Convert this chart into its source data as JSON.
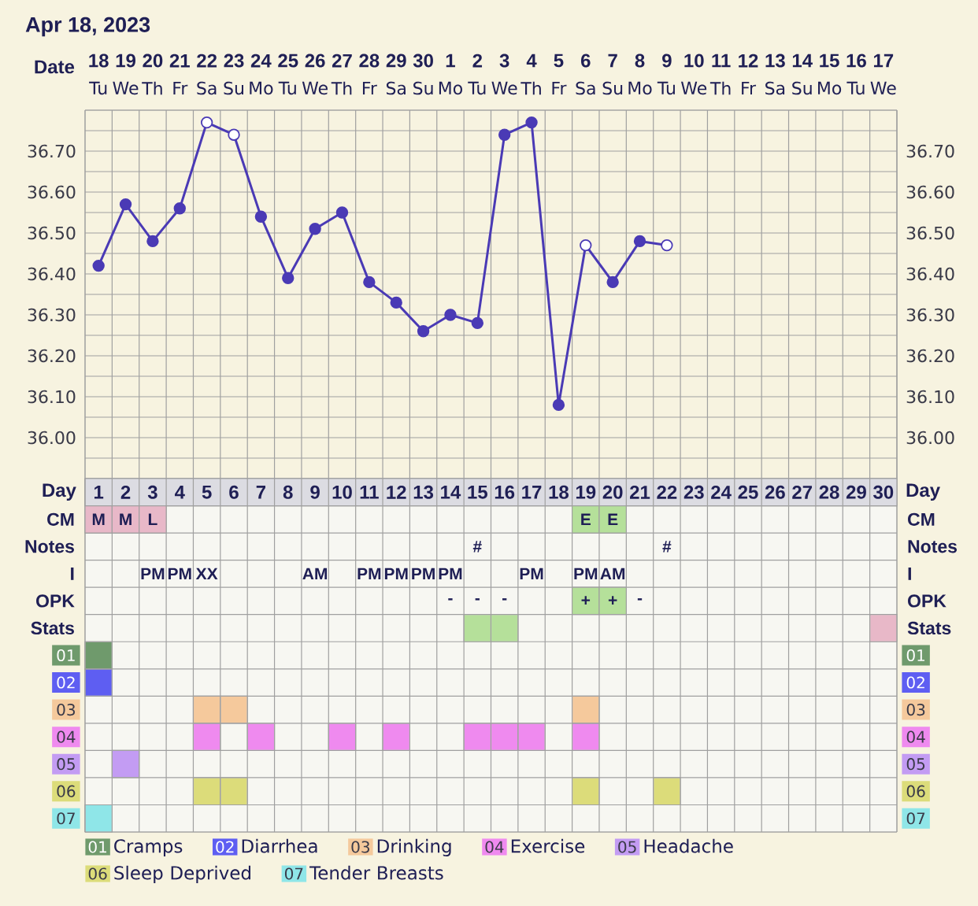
{
  "chart_data": [
    {
      "type": "line",
      "title": "Apr 18, 2023",
      "xlabel": "Date",
      "categories": [
        "18",
        "19",
        "20",
        "21",
        "22",
        "23",
        "24",
        "25",
        "26",
        "27",
        "28",
        "29",
        "30",
        "1",
        "2",
        "3",
        "4",
        "5",
        "6",
        "7",
        "8",
        "9",
        "10",
        "11",
        "12",
        "13",
        "14",
        "15",
        "16",
        "17"
      ],
      "annotations": [
        "Tu",
        "We",
        "Th",
        "Fr",
        "Sa",
        "Su",
        "Mo",
        "Tu",
        "We",
        "Th",
        "Fr",
        "Sa",
        "Su",
        "Mo",
        "Tu",
        "We",
        "Th",
        "Fr",
        "Sa",
        "Su",
        "Mo",
        "Tu",
        "We",
        "Th",
        "Fr",
        "Sa",
        "Su",
        "Mo",
        "Tu",
        "We"
      ],
      "series": [
        {
          "type": "line",
          "marker": "none",
          "color": "#4a3ab5",
          "values": [
            36.42,
            36.57,
            36.48,
            36.56,
            36.77,
            36.74,
            36.54,
            36.39,
            36.51,
            36.55,
            36.38,
            36.33,
            36.26,
            36.3,
            36.28,
            36.74,
            36.77,
            36.08,
            36.47,
            36.38,
            36.48,
            36.47,
            null,
            null,
            null,
            null,
            null,
            null,
            null,
            null
          ]
        },
        {
          "type": "scatter",
          "marker": "circle",
          "color": "#4a3ab5",
          "values": [
            36.42,
            36.57,
            36.48,
            36.56,
            null,
            null,
            36.54,
            36.39,
            36.51,
            36.55,
            36.38,
            36.33,
            36.26,
            36.3,
            36.28,
            36.74,
            36.77,
            36.08,
            null,
            36.38,
            36.48,
            null,
            null,
            null,
            null,
            null,
            null,
            null,
            null,
            null
          ]
        },
        {
          "type": "scatter",
          "marker": "circle",
          "color": "#ffffff",
          "values": [
            null,
            null,
            null,
            null,
            36.77,
            36.74,
            null,
            null,
            null,
            null,
            null,
            null,
            null,
            null,
            null,
            null,
            null,
            null,
            36.47,
            null,
            null,
            36.47,
            null,
            null,
            null,
            null,
            null,
            null,
            null,
            null
          ]
        }
      ],
      "ylim": [
        35.9,
        36.8
      ],
      "yticks": [
        {
          "value": 35.9,
          "label": null
        },
        {
          "value": 35.95,
          "label": null
        },
        {
          "value": 36.0,
          "label": "36.00"
        },
        {
          "value": 36.05,
          "label": null
        },
        {
          "value": 36.1,
          "label": "36.10"
        },
        {
          "value": 36.15,
          "label": null
        },
        {
          "value": 36.2,
          "label": "36.20"
        },
        {
          "value": 36.25,
          "label": null
        },
        {
          "value": 36.3,
          "label": "36.30"
        },
        {
          "value": 36.35,
          "label": null
        },
        {
          "value": 36.4,
          "label": "36.40"
        },
        {
          "value": 36.45,
          "label": null
        },
        {
          "value": 36.5,
          "label": "36.50"
        },
        {
          "value": 36.55,
          "label": null
        },
        {
          "value": 36.6,
          "label": "36.60"
        },
        {
          "value": 36.65,
          "label": null
        },
        {
          "value": 36.7,
          "label": "36.70"
        },
        {
          "value": 36.75,
          "label": null
        },
        {
          "value": 36.8,
          "label": null
        }
      ],
      "y2lim": [
        35.9,
        36.8
      ],
      "y2ticks": [
        {
          "value": 35.9,
          "label": null
        },
        {
          "value": 35.95,
          "label": null
        },
        {
          "value": 36.0,
          "label": "36.00"
        },
        {
          "value": 36.05,
          "label": null
        },
        {
          "value": 36.1,
          "label": "36.10"
        },
        {
          "value": 36.15,
          "label": null
        },
        {
          "value": 36.2,
          "label": "36.20"
        },
        {
          "value": 36.25,
          "label": null
        },
        {
          "value": 36.3,
          "label": "36.30"
        },
        {
          "value": 36.35,
          "label": null
        },
        {
          "value": 36.4,
          "label": "36.40"
        },
        {
          "value": 36.45,
          "label": null
        },
        {
          "value": 36.5,
          "label": "36.50"
        },
        {
          "value": 36.55,
          "label": null
        },
        {
          "value": 36.6,
          "label": "36.60"
        },
        {
          "value": 36.65,
          "label": null
        },
        {
          "value": 36.7,
          "label": "36.70"
        },
        {
          "value": 36.75,
          "label": null
        },
        {
          "value": 36.8,
          "label": null
        }
      ],
      "grid": true
    },
    {
      "type": "heatmap",
      "xlabel": "Day",
      "grid": true,
      "cells": [
        [
          null,
          null,
          null,
          null,
          null,
          null,
          null,
          null,
          null,
          null,
          null,
          null,
          null,
          null,
          null,
          null,
          null,
          null,
          null,
          null,
          null,
          null,
          null,
          null,
          null,
          null,
          null,
          null,
          null,
          null
        ],
        [
          null,
          null,
          null,
          null,
          null,
          null,
          null,
          null,
          null,
          null,
          null,
          null,
          null,
          null,
          null,
          null,
          null,
          null,
          null,
          null,
          null,
          null,
          null,
          null,
          null,
          null,
          null,
          null,
          null,
          null
        ],
        [
          null,
          null,
          null,
          null,
          null,
          null,
          null,
          null,
          null,
          null,
          null,
          null,
          null,
          null,
          null,
          null,
          null,
          null,
          null,
          null,
          null,
          null,
          null,
          null,
          null,
          null,
          null,
          null,
          null,
          null
        ],
        [
          null,
          null,
          null,
          null,
          null,
          null,
          null,
          null,
          null,
          null,
          null,
          null,
          null,
          null,
          null,
          null,
          null,
          null,
          null,
          null,
          null,
          null,
          null,
          null,
          null,
          null,
          null,
          null,
          null,
          null
        ],
        [
          null,
          null,
          null,
          null,
          null,
          null,
          null,
          null,
          null,
          null,
          null,
          null,
          null,
          null,
          null,
          null,
          null,
          null,
          null,
          null,
          null,
          null,
          null,
          null,
          null,
          null,
          null,
          null,
          null,
          null
        ],
        [
          null,
          null,
          null,
          null,
          null,
          null,
          null,
          null,
          null,
          null,
          null,
          null,
          null,
          null,
          null,
          null,
          null,
          null,
          null,
          null,
          null,
          null,
          null,
          null,
          null,
          null,
          null,
          null,
          null,
          null
        ],
        [
          null,
          null,
          null,
          null,
          null,
          null,
          null,
          null,
          null,
          null,
          null,
          null,
          null,
          null,
          null,
          null,
          null,
          null,
          null,
          null,
          null,
          null,
          null,
          null,
          null,
          null,
          null,
          null,
          null,
          null
        ],
        [
          null,
          null,
          null,
          null,
          null,
          null,
          null,
          null,
          null,
          null,
          null,
          null,
          null,
          null,
          null,
          null,
          null,
          null,
          null,
          null,
          null,
          null,
          null,
          null,
          null,
          null,
          null,
          null,
          null,
          null
        ],
        [
          null,
          null,
          null,
          null,
          null,
          null,
          null,
          null,
          null,
          null,
          null,
          null,
          null,
          null,
          null,
          null,
          null,
          null,
          null,
          null,
          null,
          null,
          null,
          null,
          null,
          null,
          null,
          null,
          null,
          null
        ],
        [
          null,
          null,
          null,
          null,
          null,
          null,
          null,
          null,
          null,
          null,
          null,
          null,
          null,
          null,
          null,
          null,
          null,
          null,
          null,
          null,
          null,
          null,
          null,
          null,
          null,
          null,
          null,
          null,
          null,
          null
        ],
        [
          null,
          null,
          null,
          null,
          null,
          null,
          null,
          null,
          null,
          null,
          null,
          null,
          null,
          null,
          null,
          null,
          null,
          null,
          null,
          null,
          null,
          null,
          null,
          null,
          null,
          null,
          null,
          null,
          null,
          null
        ],
        [
          null,
          null,
          null,
          null,
          null,
          null,
          null,
          null,
          null,
          null,
          null,
          null,
          null,
          null,
          null,
          null,
          null,
          null,
          null,
          null,
          null,
          null,
          null,
          null,
          null,
          null,
          null,
          null,
          null,
          null
        ]
      ],
      "categories": [
        "1",
        "2",
        "3",
        "4",
        "5",
        "6",
        "7",
        "8",
        "9",
        "10",
        "11",
        "12",
        "13",
        "14",
        "15",
        "16",
        "17",
        "18",
        "19",
        "20",
        "21",
        "22",
        "23",
        "24",
        "25",
        "26",
        "27",
        "28",
        "29",
        "30"
      ],
      "y_categories": [
        "CM",
        "Notes",
        "I",
        "OPK",
        "Stats",
        "01",
        "02",
        "03",
        "04",
        "05",
        "06",
        "07"
      ],
      "y2_categories": [
        "CM",
        "Notes",
        "I",
        "OPK",
        "Stats",
        "01",
        "02",
        "03",
        "04",
        "05",
        "06",
        "07"
      ],
      "cell_labels": [
        [
          "M",
          "M",
          "L",
          null,
          null,
          null,
          null,
          null,
          null,
          null,
          null,
          null,
          null,
          null,
          null,
          null,
          null,
          null,
          "E",
          "E",
          null,
          null,
          null,
          null,
          null,
          null,
          null,
          null,
          null,
          null
        ],
        [
          null,
          null,
          null,
          null,
          null,
          null,
          null,
          null,
          null,
          null,
          null,
          null,
          null,
          null,
          "#",
          null,
          null,
          null,
          null,
          null,
          null,
          "#",
          null,
          null,
          null,
          null,
          null,
          null,
          null,
          null
        ],
        [
          null,
          null,
          "PM",
          "PM",
          "XX",
          null,
          null,
          null,
          "AM",
          null,
          "PM",
          "PM",
          "PM",
          "PM",
          null,
          null,
          "PM",
          null,
          "PM",
          "AM",
          null,
          null,
          null,
          null,
          null,
          null,
          null,
          null,
          null,
          null
        ],
        [
          null,
          null,
          null,
          null,
          null,
          null,
          null,
          null,
          null,
          null,
          null,
          null,
          null,
          "-",
          "-",
          "-",
          null,
          null,
          "+",
          "+",
          "-",
          null,
          null,
          null,
          null,
          null,
          null,
          null,
          null,
          null
        ],
        [
          null,
          null,
          null,
          null,
          null,
          null,
          null,
          null,
          null,
          null,
          null,
          null,
          null,
          null,
          null,
          null,
          null,
          null,
          null,
          null,
          null,
          null,
          null,
          null,
          null,
          null,
          null,
          null,
          null,
          null
        ],
        [
          null,
          null,
          null,
          null,
          null,
          null,
          null,
          null,
          null,
          null,
          null,
          null,
          null,
          null,
          null,
          null,
          null,
          null,
          null,
          null,
          null,
          null,
          null,
          null,
          null,
          null,
          null,
          null,
          null,
          null
        ],
        [
          null,
          null,
          null,
          null,
          null,
          null,
          null,
          null,
          null,
          null,
          null,
          null,
          null,
          null,
          null,
          null,
          null,
          null,
          null,
          null,
          null,
          null,
          null,
          null,
          null,
          null,
          null,
          null,
          null,
          null
        ],
        [
          null,
          null,
          null,
          null,
          null,
          null,
          null,
          null,
          null,
          null,
          null,
          null,
          null,
          null,
          null,
          null,
          null,
          null,
          null,
          null,
          null,
          null,
          null,
          null,
          null,
          null,
          null,
          null,
          null,
          null
        ],
        [
          null,
          null,
          null,
          null,
          null,
          null,
          null,
          null,
          null,
          null,
          null,
          null,
          null,
          null,
          null,
          null,
          null,
          null,
          null,
          null,
          null,
          null,
          null,
          null,
          null,
          null,
          null,
          null,
          null,
          null
        ],
        [
          null,
          null,
          null,
          null,
          null,
          null,
          null,
          null,
          null,
          null,
          null,
          null,
          null,
          null,
          null,
          null,
          null,
          null,
          null,
          null,
          null,
          null,
          null,
          null,
          null,
          null,
          null,
          null,
          null,
          null
        ],
        [
          null,
          null,
          null,
          null,
          null,
          null,
          null,
          null,
          null,
          null,
          null,
          null,
          null,
          null,
          null,
          null,
          null,
          null,
          null,
          null,
          null,
          null,
          null,
          null,
          null,
          null,
          null,
          null,
          null,
          null
        ],
        [
          null,
          null,
          null,
          null,
          null,
          null,
          null,
          null,
          null,
          null,
          null,
          null,
          null,
          null,
          null,
          null,
          null,
          null,
          null,
          null,
          null,
          null,
          null,
          null,
          null,
          null,
          null,
          null,
          null,
          null
        ]
      ],
      "colors": [
        [
          "#e8b8c8",
          "#e8b8c8",
          "#e8b8c8",
          null,
          null,
          null,
          null,
          null,
          null,
          null,
          null,
          null,
          null,
          null,
          null,
          null,
          null,
          null,
          "#b5e09a",
          "#b5e09a",
          null,
          null,
          null,
          null,
          null,
          null,
          null,
          null,
          null,
          null
        ],
        [
          null,
          null,
          null,
          null,
          null,
          null,
          null,
          null,
          null,
          null,
          null,
          null,
          null,
          null,
          null,
          null,
          null,
          null,
          null,
          null,
          null,
          null,
          null,
          null,
          null,
          null,
          null,
          null,
          null,
          null
        ],
        [
          null,
          null,
          null,
          null,
          null,
          null,
          null,
          null,
          null,
          null,
          null,
          null,
          null,
          null,
          null,
          null,
          null,
          null,
          null,
          null,
          null,
          null,
          null,
          null,
          null,
          null,
          null,
          null,
          null,
          null
        ],
        [
          null,
          null,
          null,
          null,
          null,
          null,
          null,
          null,
          null,
          null,
          null,
          null,
          null,
          null,
          null,
          null,
          null,
          null,
          "#b5e09a",
          "#b5e09a",
          null,
          null,
          null,
          null,
          null,
          null,
          null,
          null,
          null,
          null
        ],
        [
          null,
          null,
          null,
          null,
          null,
          null,
          null,
          null,
          null,
          null,
          null,
          null,
          null,
          null,
          "#b5e09a",
          "#b5e09a",
          null,
          null,
          null,
          null,
          null,
          null,
          null,
          null,
          null,
          null,
          null,
          null,
          null,
          "#e8b8c8"
        ],
        [
          "#6f9a6c",
          null,
          null,
          null,
          null,
          null,
          null,
          null,
          null,
          null,
          null,
          null,
          null,
          null,
          null,
          null,
          null,
          null,
          null,
          null,
          null,
          null,
          null,
          null,
          null,
          null,
          null,
          null,
          null,
          null
        ],
        [
          "#5e5ef2",
          null,
          null,
          null,
          null,
          null,
          null,
          null,
          null,
          null,
          null,
          null,
          null,
          null,
          null,
          null,
          null,
          null,
          null,
          null,
          null,
          null,
          null,
          null,
          null,
          null,
          null,
          null,
          null,
          null
        ],
        [
          null,
          null,
          null,
          null,
          "#f5c99c",
          "#f5c99c",
          null,
          null,
          null,
          null,
          null,
          null,
          null,
          null,
          null,
          null,
          null,
          null,
          "#f5c99c",
          null,
          null,
          null,
          null,
          null,
          null,
          null,
          null,
          null,
          null,
          null
        ],
        [
          null,
          null,
          null,
          null,
          "#ef8aef",
          null,
          "#ef8aef",
          null,
          null,
          "#ef8aef",
          null,
          "#ef8aef",
          null,
          null,
          "#ef8aef",
          "#ef8aef",
          "#ef8aef",
          null,
          "#ef8aef",
          null,
          null,
          null,
          null,
          null,
          null,
          null,
          null,
          null,
          null,
          null
        ],
        [
          null,
          "#c39cf3",
          null,
          null,
          null,
          null,
          null,
          null,
          null,
          null,
          null,
          null,
          null,
          null,
          null,
          null,
          null,
          null,
          null,
          null,
          null,
          null,
          null,
          null,
          null,
          null,
          null,
          null,
          null,
          null
        ],
        [
          null,
          null,
          null,
          null,
          "#dcdc7a",
          "#dcdc7a",
          null,
          null,
          null,
          null,
          null,
          null,
          null,
          null,
          null,
          null,
          null,
          null,
          "#dcdc7a",
          null,
          null,
          "#dcdc7a",
          null,
          null,
          null,
          null,
          null,
          null,
          null,
          null
        ],
        [
          "#8fe6e8",
          null,
          null,
          null,
          null,
          null,
          null,
          null,
          null,
          null,
          null,
          null,
          null,
          null,
          null,
          null,
          null,
          null,
          null,
          null,
          null,
          null,
          null,
          null,
          null,
          null,
          null,
          null,
          null,
          null
        ]
      ],
      "annotations": [
        "Cramps",
        "Diarrhea",
        "Drinking",
        "Exercise",
        "Headache",
        "Sleep Deprived",
        "Tender Breasts"
      ]
    }
  ]
}
